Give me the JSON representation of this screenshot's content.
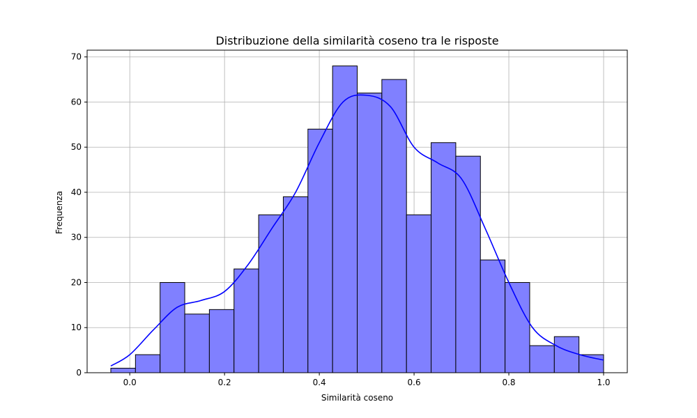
{
  "chart_data": {
    "type": "bar",
    "title": "Distribuzione della similarità coseno tra le risposte",
    "xlabel": "Similarità coseno",
    "ylabel": "Frequenza",
    "xlim": [
      -0.09,
      1.05
    ],
    "ylim": [
      0,
      71.5
    ],
    "grid": true,
    "bar_color": "#8080ff",
    "bar_edge_color": "#000000",
    "kde_color": "#0000ff",
    "x_ticks": [
      0.0,
      0.2,
      0.4,
      0.6,
      0.8,
      1.0
    ],
    "x_tick_labels": [
      "0.0",
      "0.2",
      "0.4",
      "0.6",
      "0.8",
      "1.0"
    ],
    "y_ticks": [
      0,
      10,
      20,
      30,
      40,
      50,
      60,
      70
    ],
    "y_tick_labels": [
      "0",
      "10",
      "20",
      "30",
      "40",
      "50",
      "60",
      "70"
    ],
    "bin_edges": [
      -0.04,
      0.012,
      0.064,
      0.116,
      0.168,
      0.22,
      0.272,
      0.324,
      0.376,
      0.428,
      0.48,
      0.532,
      0.584,
      0.636,
      0.688,
      0.74,
      0.792,
      0.844,
      0.896,
      0.948,
      1.0
    ],
    "values": [
      1,
      4,
      20,
      13,
      14,
      23,
      35,
      39,
      54,
      68,
      62,
      65,
      35,
      51,
      48,
      25,
      20,
      6,
      8,
      4
    ],
    "kde": {
      "x": [
        -0.04,
        0.0,
        0.05,
        0.1,
        0.15,
        0.2,
        0.25,
        0.3,
        0.35,
        0.4,
        0.45,
        0.5,
        0.55,
        0.6,
        0.65,
        0.7,
        0.75,
        0.8,
        0.85,
        0.9,
        0.95,
        1.0
      ],
      "y": [
        1.5,
        4,
        9.5,
        14.5,
        16,
        18,
        24,
        32,
        40,
        51,
        60,
        61.5,
        59,
        50,
        46.5,
        43,
        32,
        20,
        10,
        6,
        4,
        2.8
      ]
    }
  }
}
